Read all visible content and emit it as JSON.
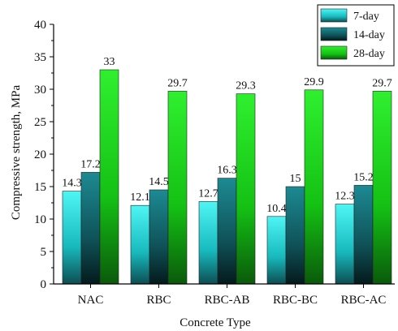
{
  "chart_data": {
    "type": "bar",
    "xlabel": "Concrete Type",
    "ylabel": "Compressive strength, MPa",
    "categories": [
      "NAC",
      "RBC",
      "RBC-AB",
      "RBC-BC",
      "RBC-AC"
    ],
    "ylim": [
      0,
      40
    ],
    "yticks": [
      "0",
      "5",
      "10",
      "15",
      "20",
      "25",
      "30",
      "35",
      "40"
    ],
    "series": [
      {
        "name": "7-day",
        "values": [
          14.3,
          12.1,
          12.7,
          10.4,
          12.3
        ],
        "labels": [
          "14.3",
          "12.1",
          "12.7",
          "10.4",
          "12.3"
        ],
        "color": "#22e6e6"
      },
      {
        "name": "14-day",
        "values": [
          17.2,
          14.5,
          16.3,
          15,
          15.2
        ],
        "labels": [
          "17.2",
          "14.5",
          "16.3",
          "15",
          "15.2"
        ],
        "color": "#167f86"
      },
      {
        "name": "28-day",
        "values": [
          33,
          29.7,
          29.3,
          29.9,
          29.7
        ],
        "labels": [
          "33",
          "29.7",
          "29.3",
          "29.9",
          "29.7"
        ],
        "color": "#19e019"
      }
    ],
    "legend_position": "top-right",
    "grid": false
  }
}
